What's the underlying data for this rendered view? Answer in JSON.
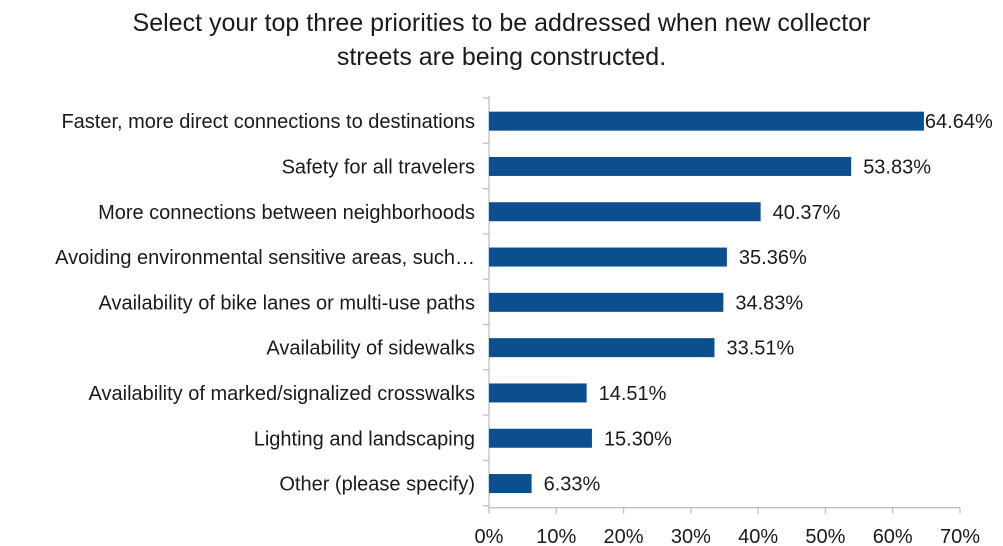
{
  "chart_data": {
    "type": "bar",
    "orientation": "horizontal",
    "title": "Select your top three priorities to be addressed when new collector streets are being constructed.",
    "title_lines": [
      "Select your top three priorities to be addressed when new collector",
      "streets are being constructed."
    ],
    "categories": [
      "Faster, more direct connections to destinations",
      "Safety for all travelers",
      "More connections between neighborhoods",
      "Avoiding environmental sensitive areas, such…",
      "Availability of bike lanes or multi-use paths",
      "Availability of sidewalks",
      "Availability of marked/signalized crosswalks",
      "Lighting and landscaping",
      "Other (please specify)"
    ],
    "values": [
      64.64,
      53.83,
      40.37,
      35.36,
      34.83,
      33.51,
      14.51,
      15.3,
      6.33
    ],
    "value_labels": [
      "64.64%",
      "53.83%",
      "40.37%",
      "35.36%",
      "34.83%",
      "33.51%",
      "14.51%",
      "15.30%",
      "6.33%"
    ],
    "xlim": [
      0,
      70
    ],
    "x_ticks": [
      0,
      10,
      20,
      30,
      40,
      50,
      60,
      70
    ],
    "x_tick_labels": [
      "0%",
      "10%",
      "20%",
      "30%",
      "40%",
      "50%",
      "60%",
      "70%"
    ],
    "xlabel": "",
    "ylabel": "",
    "grid": false,
    "legend": "none",
    "bar_color": "#0b4f8f"
  }
}
